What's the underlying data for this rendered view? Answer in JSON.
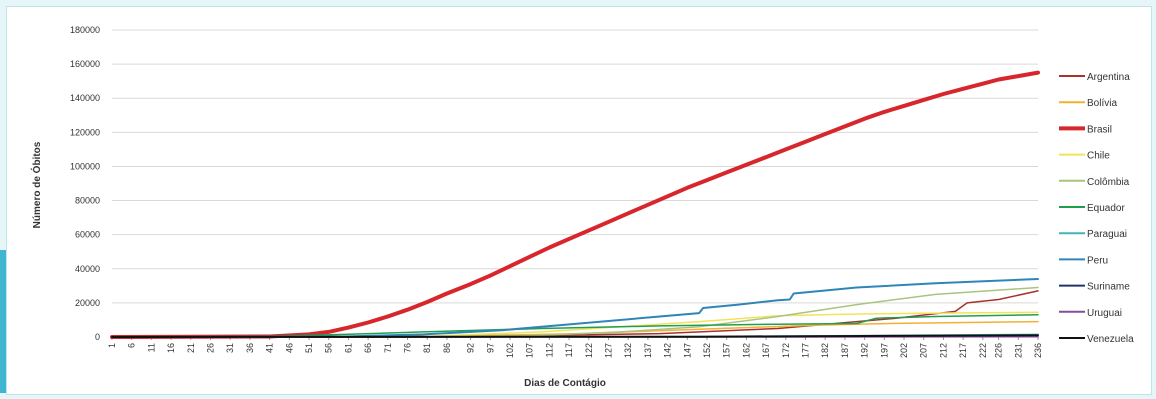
{
  "chart_data": {
    "type": "line",
    "title": "",
    "xlabel": "Dias de Contágio",
    "ylabel": "Número de Óbitos",
    "ylim": [
      0,
      180000
    ],
    "yticks": [
      0,
      20000,
      40000,
      60000,
      80000,
      100000,
      120000,
      140000,
      160000,
      180000
    ],
    "xlim": [
      1,
      236
    ],
    "xticks": [
      1,
      6,
      11,
      16,
      21,
      26,
      31,
      36,
      41,
      46,
      51,
      56,
      61,
      66,
      71,
      76,
      81,
      86,
      92,
      97,
      102,
      107,
      112,
      117,
      122,
      127,
      132,
      137,
      142,
      147,
      152,
      157,
      162,
      167,
      172,
      177,
      182,
      187,
      192,
      197,
      202,
      207,
      212,
      217,
      222,
      226,
      231,
      236
    ],
    "grid": true,
    "legend": "right",
    "series": [
      {
        "name": "Argentina",
        "color": "#a8322d",
        "width": 1.5,
        "points": [
          [
            1,
            0
          ],
          [
            100,
            500
          ],
          [
            140,
            2000
          ],
          [
            170,
            5000
          ],
          [
            190,
            9000
          ],
          [
            200,
            11000
          ],
          [
            215,
            15000
          ],
          [
            218,
            20000
          ],
          [
            226,
            22000
          ],
          [
            236,
            27000
          ]
        ]
      },
      {
        "name": "Bolívia",
        "color": "#f2b134",
        "width": 1.5,
        "points": [
          [
            1,
            0
          ],
          [
            80,
            300
          ],
          [
            120,
            2000
          ],
          [
            150,
            4500
          ],
          [
            180,
            7000
          ],
          [
            200,
            8000
          ],
          [
            236,
            9000
          ]
        ]
      },
      {
        "name": "Brasil",
        "color": "#d7262c",
        "width": 4,
        "points": [
          [
            1,
            0
          ],
          [
            41,
            300
          ],
          [
            51,
            1500
          ],
          [
            56,
            3000
          ],
          [
            61,
            5500
          ],
          [
            66,
            8500
          ],
          [
            71,
            12000
          ],
          [
            76,
            16000
          ],
          [
            81,
            20500
          ],
          [
            86,
            25500
          ],
          [
            92,
            31000
          ],
          [
            97,
            36000
          ],
          [
            102,
            41500
          ],
          [
            107,
            47000
          ],
          [
            112,
            52500
          ],
          [
            117,
            57500
          ],
          [
            122,
            62500
          ],
          [
            127,
            67500
          ],
          [
            132,
            72500
          ],
          [
            137,
            77500
          ],
          [
            142,
            82500
          ],
          [
            147,
            87500
          ],
          [
            152,
            92000
          ],
          [
            157,
            96500
          ],
          [
            162,
            101000
          ],
          [
            167,
            105500
          ],
          [
            172,
            110000
          ],
          [
            177,
            114500
          ],
          [
            182,
            119000
          ],
          [
            187,
            123500
          ],
          [
            192,
            128000
          ],
          [
            197,
            132000
          ],
          [
            202,
            135500
          ],
          [
            207,
            139000
          ],
          [
            212,
            142500
          ],
          [
            217,
            145500
          ],
          [
            222,
            148500
          ],
          [
            226,
            151000
          ],
          [
            231,
            153000
          ],
          [
            236,
            155000
          ]
        ]
      },
      {
        "name": "Chile",
        "color": "#f3e25a",
        "width": 1.5,
        "points": [
          [
            1,
            0
          ],
          [
            80,
            300
          ],
          [
            110,
            3000
          ],
          [
            130,
            6000
          ],
          [
            150,
            9000
          ],
          [
            170,
            12500
          ],
          [
            190,
            13500
          ],
          [
            210,
            14000
          ],
          [
            236,
            14500
          ]
        ]
      },
      {
        "name": "Colômbia",
        "color": "#a9c47f",
        "width": 1.5,
        "points": [
          [
            1,
            0
          ],
          [
            80,
            100
          ],
          [
            110,
            1000
          ],
          [
            130,
            3000
          ],
          [
            150,
            6000
          ],
          [
            170,
            12000
          ],
          [
            190,
            19000
          ],
          [
            210,
            25000
          ],
          [
            236,
            29000
          ]
        ]
      },
      {
        "name": "Equador",
        "color": "#1f9e50",
        "width": 1.5,
        "points": [
          [
            1,
            0
          ],
          [
            40,
            300
          ],
          [
            60,
            1500
          ],
          [
            80,
            3000
          ],
          [
            110,
            5000
          ],
          [
            140,
            6500
          ],
          [
            170,
            7500
          ],
          [
            190,
            7900
          ],
          [
            195,
            11000
          ],
          [
            210,
            12000
          ],
          [
            236,
            13000
          ]
        ]
      },
      {
        "name": "Paraguai",
        "color": "#3fb7b7",
        "width": 1.5,
        "points": [
          [
            1,
            0
          ],
          [
            120,
            100
          ],
          [
            150,
            300
          ],
          [
            190,
            800
          ],
          [
            236,
            1500
          ]
        ]
      },
      {
        "name": "Peru",
        "color": "#2f86b6",
        "width": 2,
        "points": [
          [
            1,
            0
          ],
          [
            60,
            300
          ],
          [
            80,
            1500
          ],
          [
            100,
            4000
          ],
          [
            120,
            8000
          ],
          [
            140,
            12000
          ],
          [
            150,
            14000
          ],
          [
            151,
            17000
          ],
          [
            160,
            19000
          ],
          [
            170,
            21500
          ],
          [
            173,
            22000
          ],
          [
            174,
            25500
          ],
          [
            190,
            29000
          ],
          [
            210,
            31500
          ],
          [
            236,
            34000
          ]
        ]
      },
      {
        "name": "Suriname",
        "color": "#23336d",
        "width": 1.5,
        "points": [
          [
            1,
            0
          ],
          [
            150,
            50
          ],
          [
            236,
            200
          ]
        ]
      },
      {
        "name": "Uruguai",
        "color": "#8a4a98",
        "width": 1.5,
        "points": [
          [
            1,
            0
          ],
          [
            236,
            100
          ]
        ]
      },
      {
        "name": "Venezuela",
        "color": "#111111",
        "width": 2,
        "points": [
          [
            1,
            0
          ],
          [
            150,
            200
          ],
          [
            236,
            1000
          ]
        ]
      }
    ]
  }
}
